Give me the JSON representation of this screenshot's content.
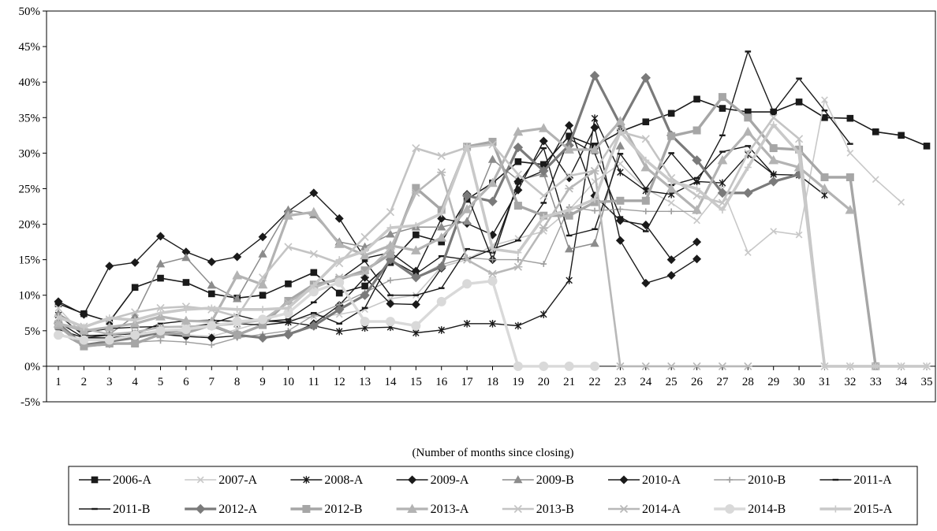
{
  "chart_data": {
    "type": "line",
    "title": "",
    "xlabel": "(Number of months since closing)",
    "ylabel": "",
    "x": [
      1,
      2,
      3,
      4,
      5,
      6,
      7,
      8,
      9,
      10,
      11,
      12,
      13,
      14,
      15,
      16,
      17,
      18,
      19,
      20,
      21,
      22,
      23,
      24,
      25,
      26,
      27,
      28,
      29,
      30,
      31,
      32,
      33,
      34,
      35
    ],
    "xlim": [
      0.5,
      35.5
    ],
    "ylim": [
      -0.05,
      0.5
    ],
    "yticks": [
      -0.05,
      0,
      0.05,
      0.1,
      0.15,
      0.2,
      0.25,
      0.3,
      0.35,
      0.4,
      0.45,
      0.5
    ],
    "ytick_labels": [
      "-5%",
      "0%",
      "5%",
      "10%",
      "15%",
      "20%",
      "25%",
      "30%",
      "35%",
      "40%",
      "45%",
      "50%"
    ],
    "grid": false,
    "legend_position": "bottom",
    "series": [
      {
        "name": "2006-A",
        "color": "#1a1a1a",
        "width": 1.6,
        "marker": "square",
        "values": [
          0.088,
          0.074,
          0.063,
          0.111,
          0.124,
          0.118,
          0.102,
          0.096,
          0.1,
          0.116,
          0.132,
          0.103,
          0.113,
          0.146,
          0.185,
          0.175,
          0.235,
          0.258,
          0.288,
          0.284,
          0.324,
          0.31,
          0.33,
          0.344,
          0.356,
          0.376,
          0.363,
          0.358,
          0.358,
          0.372,
          0.35,
          0.349,
          0.33,
          0.325,
          0.31
        ]
      },
      {
        "name": "2007-A",
        "color": "#c8c8c8",
        "width": 1.6,
        "marker": "x",
        "values": [
          0.082,
          0.043,
          0.044,
          0.048,
          0.045,
          0.044,
          0.042,
          0.052,
          0.062,
          0.065,
          0.07,
          0.073,
          0.08,
          0.095,
          0.1,
          0.14,
          0.15,
          0.17,
          0.18,
          0.19,
          0.22,
          0.26,
          0.285,
          0.25,
          0.23,
          0.205,
          0.25,
          0.16,
          0.19,
          0.185,
          0.375,
          0.3,
          0.263,
          0.231,
          null
        ]
      },
      {
        "name": "2008-A",
        "color": "#1a1a1a",
        "width": 1.4,
        "marker": "star",
        "values": [
          0.072,
          0.043,
          0.044,
          0.046,
          0.05,
          0.052,
          0.06,
          0.06,
          0.058,
          0.062,
          0.057,
          0.049,
          0.054,
          0.055,
          0.047,
          0.051,
          0.06,
          0.06,
          0.057,
          0.073,
          0.121,
          0.349,
          0.273,
          0.247,
          0.242,
          0.26,
          0.258,
          0.298,
          0.27,
          0.269,
          0.241,
          null,
          null,
          null,
          null
        ]
      },
      {
        "name": "2009-A",
        "color": "#1a1a1a",
        "width": 1.4,
        "marker": "diamond",
        "values": [
          0.091,
          0.073,
          0.141,
          0.146,
          0.183,
          0.161,
          0.147,
          0.154,
          0.182,
          0.218,
          0.244,
          0.208,
          0.152,
          0.16,
          0.134,
          0.208,
          0.201,
          0.185,
          0.248,
          0.317,
          0.265,
          0.336,
          0.177,
          0.117,
          0.128,
          0.151,
          null,
          null,
          null,
          null,
          null,
          null,
          null,
          null,
          null
        ]
      },
      {
        "name": "2009-B",
        "color": "#8c8c8c",
        "width": 1.5,
        "marker": "triangle",
        "values": [
          0.074,
          0.052,
          0.045,
          0.071,
          0.144,
          0.153,
          0.114,
          0.095,
          0.158,
          0.22,
          0.213,
          0.175,
          0.168,
          0.186,
          0.196,
          0.196,
          0.204,
          0.291,
          0.262,
          0.271,
          0.165,
          0.173,
          0.31,
          null,
          null,
          null,
          null,
          null,
          null,
          null,
          null,
          null,
          null,
          null,
          null
        ]
      },
      {
        "name": "2010-A",
        "color": "#1a1a1a",
        "width": 1.4,
        "marker": "diamond",
        "values": [
          0.062,
          0.04,
          0.04,
          0.044,
          0.045,
          0.042,
          0.04,
          0.043,
          0.04,
          0.044,
          0.06,
          0.086,
          0.125,
          0.088,
          0.087,
          0.138,
          0.242,
          0.15,
          0.26,
          0.275,
          0.339,
          0.24,
          0.205,
          0.199,
          0.15,
          0.175,
          null,
          null,
          null,
          null,
          null,
          null,
          null,
          null,
          null
        ]
      },
      {
        "name": "2010-B",
        "color": "#9e9e9e",
        "width": 1.4,
        "marker": "plus",
        "values": [
          0.048,
          0.028,
          0.03,
          0.034,
          0.036,
          0.034,
          0.03,
          0.04,
          0.045,
          0.05,
          0.072,
          0.087,
          0.104,
          0.121,
          0.125,
          0.143,
          0.153,
          0.15,
          0.15,
          0.144,
          0.224,
          0.219,
          0.221,
          0.218,
          0.218,
          0.218,
          null,
          null,
          null,
          null,
          null,
          null,
          null,
          null,
          null
        ]
      },
      {
        "name": "2011-A",
        "color": "#1a1a1a",
        "width": 1.4,
        "marker": "dash",
        "values": [
          0.061,
          0.048,
          0.053,
          0.055,
          0.056,
          0.055,
          0.06,
          0.072,
          0.063,
          0.066,
          0.09,
          0.122,
          0.148,
          0.1,
          0.1,
          0.11,
          0.165,
          0.16,
          0.257,
          0.307,
          0.184,
          0.193,
          0.299,
          0.25,
          0.3,
          0.258,
          0.325,
          0.443,
          0.358,
          0.405,
          0.36,
          0.313,
          null,
          null,
          null
        ]
      },
      {
        "name": "2011-B",
        "color": "#1a1a1a",
        "width": 1.4,
        "marker": "dash",
        "values": [
          0.052,
          0.04,
          0.044,
          0.046,
          0.06,
          0.064,
          0.065,
          0.063,
          0.064,
          0.062,
          0.075,
          0.06,
          0.082,
          0.15,
          0.13,
          0.155,
          0.15,
          0.165,
          0.177,
          0.23,
          0.32,
          0.3,
          0.21,
          0.19,
          0.255,
          0.265,
          0.302,
          0.31,
          0.27,
          null,
          null,
          null,
          null,
          null,
          null
        ]
      },
      {
        "name": "2012-A",
        "color": "#7a7a7a",
        "width": 3.2,
        "marker": "diamond",
        "values": [
          0.06,
          0.03,
          0.035,
          0.04,
          0.048,
          0.052,
          0.057,
          0.044,
          0.04,
          0.045,
          0.057,
          0.08,
          0.1,
          0.15,
          0.125,
          0.14,
          0.24,
          0.232,
          0.308,
          0.275,
          0.311,
          0.409,
          0.34,
          0.406,
          0.325,
          0.29,
          0.244,
          0.244,
          0.26,
          0.27,
          null,
          null,
          null,
          null,
          null
        ]
      },
      {
        "name": "2012-B",
        "color": "#a6a6a6",
        "width": 3.4,
        "marker": "square",
        "values": [
          0.057,
          0.028,
          0.032,
          0.032,
          0.045,
          0.047,
          0.058,
          0.044,
          0.058,
          0.092,
          0.115,
          0.122,
          0.135,
          0.158,
          0.251,
          0.22,
          0.309,
          0.316,
          0.226,
          0.212,
          0.212,
          0.231,
          0.233,
          0.233,
          0.324,
          0.332,
          0.379,
          0.35,
          0.307,
          0.305,
          0.266,
          0.266,
          0.0,
          null,
          null
        ]
      },
      {
        "name": "2013-A",
        "color": "#b3b3b3",
        "width": 3.2,
        "marker": "triangle",
        "values": [
          0.06,
          0.05,
          0.055,
          0.06,
          0.07,
          0.064,
          0.063,
          0.128,
          0.115,
          0.212,
          0.217,
          0.172,
          0.156,
          0.17,
          0.163,
          0.181,
          0.221,
          0.258,
          0.33,
          0.335,
          0.305,
          0.305,
          0.345,
          0.28,
          0.25,
          0.22,
          0.29,
          0.33,
          0.29,
          0.28,
          0.25,
          0.22,
          null,
          null,
          null
        ]
      },
      {
        "name": "2013-B",
        "color": "#c4c4c4",
        "width": 2.6,
        "marker": "x",
        "values": [
          0.068,
          0.056,
          0.066,
          0.076,
          0.082,
          0.084,
          0.08,
          0.07,
          0.125,
          0.168,
          0.158,
          0.145,
          0.182,
          0.217,
          0.307,
          0.296,
          0.308,
          0.312,
          0.27,
          0.24,
          0.268,
          0.275,
          0.33,
          0.32,
          0.265,
          0.24,
          0.23,
          0.3,
          0.35,
          0.32,
          0.0,
          0.0,
          0.0,
          0.0,
          0.0
        ]
      },
      {
        "name": "2014-A",
        "color": "#b8b8b8",
        "width": 2.6,
        "marker": "asterisk",
        "values": [
          0.06,
          0.053,
          0.045,
          0.048,
          0.055,
          0.056,
          0.057,
          0.06,
          0.065,
          0.09,
          0.11,
          0.125,
          0.131,
          0.166,
          0.244,
          0.273,
          0.15,
          0.13,
          0.14,
          0.195,
          0.25,
          0.275,
          0.0,
          0.0,
          0.0,
          0.0,
          0.0,
          0.0,
          null,
          null,
          null,
          null,
          null,
          null,
          null
        ]
      },
      {
        "name": "2014-B",
        "color": "#d9d9d9",
        "width": 3.4,
        "marker": "circle",
        "values": [
          0.044,
          0.037,
          0.037,
          0.044,
          0.05,
          0.052,
          0.057,
          0.063,
          0.066,
          0.075,
          0.105,
          0.118,
          0.063,
          0.063,
          0.057,
          0.091,
          0.116,
          0.12,
          0.0,
          0.0,
          0.0,
          0.0,
          null,
          null,
          null,
          null,
          null,
          null,
          null,
          null,
          null,
          null,
          null,
          null,
          null
        ]
      },
      {
        "name": "2015-A",
        "color": "#c9c9c9",
        "width": 3.6,
        "marker": "plus",
        "values": [
          0.07,
          0.055,
          0.068,
          0.065,
          0.075,
          0.08,
          0.082,
          0.08,
          0.08,
          0.082,
          0.114,
          0.15,
          0.162,
          0.195,
          0.198,
          0.215,
          0.31,
          0.165,
          0.16,
          0.21,
          0.22,
          0.235,
          0.33,
          0.29,
          0.26,
          0.25,
          0.22,
          0.28,
          0.34,
          0.3,
          0.0,
          0.0,
          0.0,
          0.0,
          0.0
        ]
      }
    ]
  }
}
